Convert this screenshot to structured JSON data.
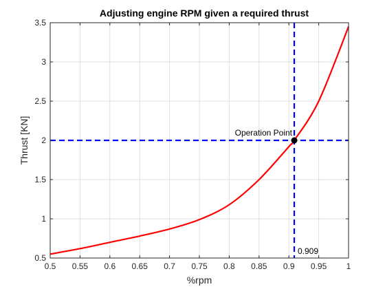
{
  "chart_data": {
    "type": "line",
    "title": "Adjusting engine RPM given a required thrust",
    "xlabel": "%rpm",
    "ylabel": "Thrust [KN]",
    "xlim": [
      0.5,
      1.0
    ],
    "ylim": [
      0.5,
      3.5
    ],
    "xticks": [
      "0.5",
      "0.55",
      "0.6",
      "0.65",
      "0.7",
      "0.75",
      "0.8",
      "0.85",
      "0.9",
      "0.95",
      "1"
    ],
    "yticks": [
      "0.5",
      "1",
      "1.5",
      "2",
      "2.5",
      "3",
      "3.5"
    ],
    "grid": true,
    "series": [
      {
        "color": "#ff0000",
        "x": [
          0.5,
          0.55,
          0.6,
          0.65,
          0.7,
          0.75,
          0.8,
          0.85,
          0.9,
          0.909,
          0.95,
          1.0
        ],
        "y": [
          0.55,
          0.62,
          0.7,
          0.78,
          0.87,
          0.99,
          1.18,
          1.5,
          1.92,
          2.0,
          2.5,
          3.45
        ]
      }
    ],
    "reference_lines": [
      {
        "orientation": "horizontal",
        "value": 2.0,
        "color": "#0000ff",
        "style": "dashed"
      },
      {
        "orientation": "vertical",
        "value": 0.909,
        "color": "#0000ff",
        "style": "dashed"
      }
    ],
    "operation_point": {
      "x": 0.909,
      "y": 2.0,
      "label": "Operation Point",
      "color": "#000000"
    },
    "x_annotation": "0.909"
  }
}
